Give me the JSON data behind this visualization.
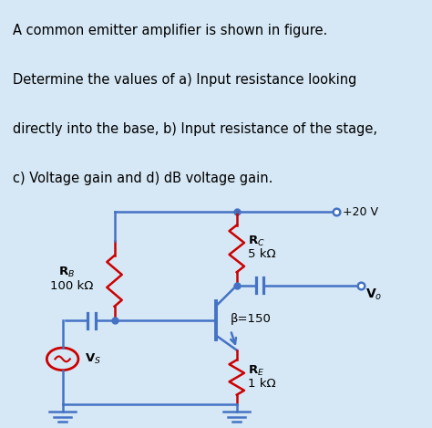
{
  "bg_color": "#d6e8f5",
  "circuit_bg": "#f0ede4",
  "text_color": "#000000",
  "blue_color": "#4472c4",
  "red_color": "#cc0000",
  "problem_line1": "A common emitter amplifier is shown in figure.",
  "problem_line2": "Determine the values of a) Input resistance looking",
  "problem_line3": "directly into the base, b) Input resistance of the stage,",
  "problem_line4": "c) Voltage gain and d) dB voltage gain.",
  "label_VCC": "+20 V",
  "label_beta": "β=150",
  "vs_label": "V",
  "vs_sub": "S",
  "vo_label": "V",
  "vo_sub": "o"
}
